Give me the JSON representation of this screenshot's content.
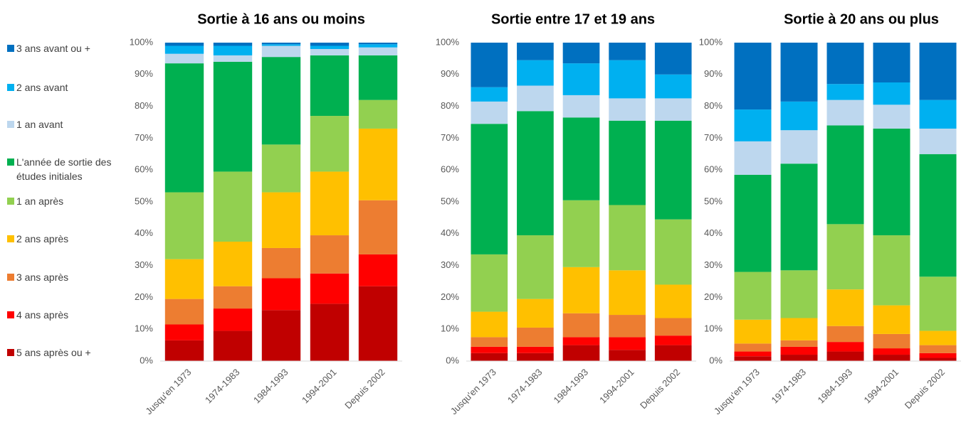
{
  "chart_data": [
    {
      "type": "bar",
      "stacked": true,
      "title": "Sortie à 16 ans ou moins",
      "categories": [
        "Jusqu'en 1973",
        "1974-1983",
        "1984-1993",
        "1994-2001",
        "Depuis 2002"
      ],
      "series": [
        {
          "name": "5 ans après ou +",
          "color": "#c00000",
          "values": [
            6.5,
            9.5,
            16,
            18,
            23.5
          ]
        },
        {
          "name": "4 ans après",
          "color": "#ff0000",
          "values": [
            5,
            7,
            10,
            9.5,
            10
          ]
        },
        {
          "name": "3 ans après",
          "color": "#ed7d31",
          "values": [
            8,
            7,
            9.5,
            12,
            17
          ]
        },
        {
          "name": "2 ans après",
          "color": "#ffc000",
          "values": [
            12.5,
            14,
            17.5,
            20,
            22.5
          ]
        },
        {
          "name": "1 an après",
          "color": "#92d050",
          "values": [
            21,
            22,
            15,
            17.5,
            9
          ]
        },
        {
          "name": "L'année de sortie des études initiales",
          "color": "#00b050",
          "values": [
            40.5,
            34.5,
            27.5,
            19,
            14
          ]
        },
        {
          "name": "1 an avant",
          "color": "#bdd7ee",
          "values": [
            3,
            2,
            3.5,
            2,
            2.5
          ]
        },
        {
          "name": "2 ans avant",
          "color": "#00b0f0",
          "values": [
            2.5,
            3,
            0.5,
            1,
            1
          ]
        },
        {
          "name": "3 ans avant ou +",
          "color": "#0070c0",
          "values": [
            1,
            1,
            0.5,
            1,
            0.5
          ]
        }
      ],
      "ylim": [
        0,
        100
      ],
      "yticks": [
        {
          "value": 0,
          "label": "0%"
        },
        {
          "value": 10,
          "label": "10%"
        },
        {
          "value": 20,
          "label": "20%"
        },
        {
          "value": 30,
          "label": "30%"
        },
        {
          "value": 40,
          "label": "40%"
        },
        {
          "value": 50,
          "label": "50%"
        },
        {
          "value": 60,
          "label": "60%"
        },
        {
          "value": 70,
          "label": "70%"
        },
        {
          "value": 80,
          "label": "80%"
        },
        {
          "value": 90,
          "label": "90%"
        },
        {
          "value": 100,
          "label": "100%"
        }
      ],
      "grid": false
    },
    {
      "type": "bar",
      "stacked": true,
      "title": "Sortie entre 17 et 19 ans",
      "categories": [
        "Jusqu'en 1973",
        "1974-1983",
        "1984-1993",
        "1994-2001",
        "Depuis 2002"
      ],
      "series": [
        {
          "values": [
            2.5,
            2.5,
            5,
            3.5,
            5
          ]
        },
        {
          "values": [
            2,
            2,
            2.5,
            4,
            3
          ]
        },
        {
          "values": [
            3,
            6,
            7.5,
            7,
            5.5
          ]
        },
        {
          "values": [
            8,
            9,
            14.5,
            14,
            10.5
          ]
        },
        {
          "values": [
            18,
            20,
            21,
            20.5,
            20.5
          ]
        },
        {
          "values": [
            41,
            39,
            26,
            26.5,
            31
          ]
        },
        {
          "values": [
            7,
            8,
            7,
            7,
            7
          ]
        },
        {
          "values": [
            4.5,
            8,
            10,
            12,
            7.5
          ]
        },
        {
          "values": [
            14,
            5.5,
            6.5,
            5.5,
            10
          ]
        }
      ],
      "ylim": [
        0,
        100
      ],
      "yticks": [
        {
          "value": 0,
          "label": "0%"
        },
        {
          "value": 10,
          "label": "10%"
        },
        {
          "value": 20,
          "label": "20%"
        },
        {
          "value": 30,
          "label": "30%"
        },
        {
          "value": 40,
          "label": "40%"
        },
        {
          "value": 50,
          "label": "50%"
        },
        {
          "value": 60,
          "label": "60%"
        },
        {
          "value": 70,
          "label": "70%"
        },
        {
          "value": 80,
          "label": "80%"
        },
        {
          "value": 90,
          "label": "90%"
        },
        {
          "value": 100,
          "label": "100%"
        }
      ],
      "grid": false
    },
    {
      "type": "bar",
      "stacked": true,
      "title": "Sortie à 20 ans ou plus",
      "categories": [
        "Jusqu'en 1973",
        "1974-1983",
        "1984-1993",
        "1994-2001",
        "Depuis 2002"
      ],
      "series": [
        {
          "values": [
            1.5,
            2,
            3,
            2,
            1
          ]
        },
        {
          "values": [
            1.5,
            2.5,
            3,
            2,
            1.5
          ]
        },
        {
          "values": [
            2.5,
            2,
            5,
            4.5,
            2.5
          ]
        },
        {
          "values": [
            7.5,
            7,
            11.5,
            9,
            4.5
          ]
        },
        {
          "values": [
            15,
            15,
            20.5,
            22,
            17
          ]
        },
        {
          "values": [
            30.5,
            33.5,
            31,
            33.5,
            38.5
          ]
        },
        {
          "values": [
            10.5,
            10.5,
            8,
            7.5,
            8
          ]
        },
        {
          "values": [
            10,
            9,
            5,
            7,
            9
          ]
        },
        {
          "values": [
            21,
            18.5,
            13,
            12.5,
            18
          ]
        }
      ],
      "ylim": [
        0,
        100
      ],
      "yticks": [
        {
          "value": 0,
          "label": "0%"
        },
        {
          "value": 10,
          "label": "10%"
        },
        {
          "value": 20,
          "label": "20%"
        },
        {
          "value": 30,
          "label": "30%"
        },
        {
          "value": 40,
          "label": "40%"
        },
        {
          "value": 50,
          "label": "50%"
        },
        {
          "value": 60,
          "label": "60%"
        },
        {
          "value": 70,
          "label": "70%"
        },
        {
          "value": 80,
          "label": "80%"
        },
        {
          "value": 90,
          "label": "90%"
        },
        {
          "value": 100,
          "label": "100%"
        }
      ],
      "grid": false
    }
  ]
}
